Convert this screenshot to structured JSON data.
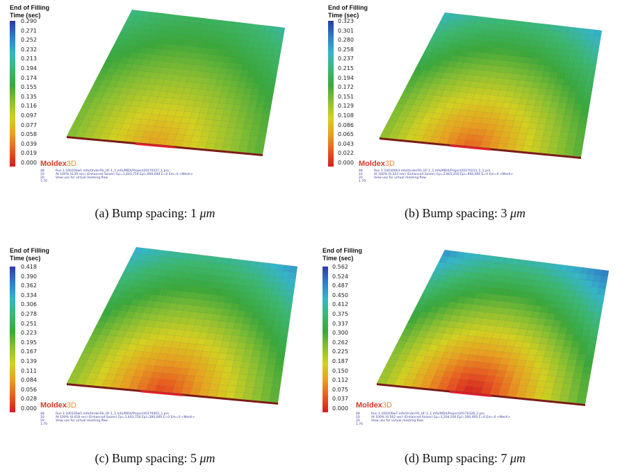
{
  "legend_title_line1": "End of Filling",
  "legend_title_line2": "Time (sec)",
  "brand_name": "Moldex",
  "brand_suffix": "3D",
  "caption_prefix": "Bump spacing:",
  "caption_unit": "μm",
  "info_numbers": [
    "48",
    "10",
    "20",
    "1.70"
  ],
  "colors": {
    "scale": [
      "#2b3aa8",
      "#2f7fc8",
      "#35b6c8",
      "#3bb870",
      "#3aa83a",
      "#8cc030",
      "#d4d020",
      "#e8a020",
      "#e85a20",
      "#d41e1e"
    ],
    "caption_text": "#111111",
    "brand_red": "#d43a2b"
  },
  "panels": [
    {
      "id": "a",
      "caption_letter": "(a)",
      "caption_value": "1",
      "legend_values": [
        "0.290",
        "0.271",
        "0.252",
        "0.232",
        "0.213",
        "0.194",
        "0.174",
        "0.155",
        "0.135",
        "0.116",
        "0.097",
        "0.077",
        "0.058",
        "0.039",
        "0.019",
        "0.000"
      ],
      "run_line1": "Run 1:100100w1.mfe/UnderFill_UF-1_1.mfo/MDX/Project20170327_1.pro",
      "run_line2": "At 100% (0.29 sec) (Enhanced Solver) Ep=1,603,750 Epi=900,000 E=0 Em=0 <Mesh>",
      "run_line3": "View ues for virtual meshing flow"
    },
    {
      "id": "b",
      "caption_letter": "(b)",
      "caption_value": "3",
      "legend_values": [
        "0.323",
        "0.301",
        "0.280",
        "0.258",
        "0.237",
        "0.215",
        "0.194",
        "0.172",
        "0.151",
        "0.129",
        "0.108",
        "0.086",
        "0.065",
        "0.043",
        "0.022",
        "0.000"
      ],
      "run_line1": "Run 1:100300h3.mfe/UnderFill_UF-1_1.mfo/MDX/Project20170213_1_1.pro",
      "run_line2": "At 100% (0.323 sec) (Enhanced Solver) Ep=2,465,250 Epi=900,000 E=0 Em=0 <Mesh>",
      "run_line3": "View ues for virtual meshing flow"
    },
    {
      "id": "c",
      "caption_letter": "(c)",
      "caption_value": "5",
      "legend_values": [
        "0.418",
        "0.390",
        "0.362",
        "0.334",
        "0.306",
        "0.278",
        "0.251",
        "0.223",
        "0.195",
        "0.167",
        "0.139",
        "0.111",
        "0.084",
        "0.056",
        "0.028",
        "0.000"
      ],
      "run_line1": "Run 1:100100w5.mfe/UnderFill_UF-1_1.mfo/MDX/Project20170403_1.pro",
      "run_line2": "At 100% (0.418 sec) (Enhanced Solver) Ep=1,403,750 Epi=300,000 E=0 Em=0 <Mesh>",
      "run_line3": "View ues for virtual meshing flow"
    },
    {
      "id": "d",
      "caption_letter": "(d)",
      "caption_value": "7",
      "legend_values": [
        "0.562",
        "0.524",
        "0.487",
        "0.450",
        "0.412",
        "0.375",
        "0.337",
        "0.300",
        "0.262",
        "0.225",
        "0.187",
        "0.150",
        "0.112",
        "0.075",
        "0.037",
        "0.000"
      ],
      "run_line1": "Run 1:100100w7.mfe/UnderFill_UF-1_1.mfo/MDX/Project20170328_1.pro",
      "run_line2": "At 100% (0.562 sec) (Enhanced Solver) Ep=3,204,500 Epi=300,000 E=0 Em=0 <Mesh>",
      "run_line3": "View ues for virtual meshing flow"
    }
  ]
}
